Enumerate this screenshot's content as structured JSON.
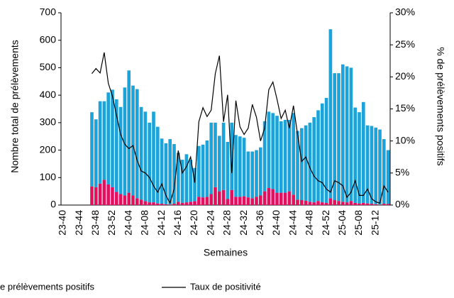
{
  "chart_data": {
    "type": "bar",
    "categories": [
      "23-40",
      null,
      null,
      null,
      "23-44",
      null,
      null,
      null,
      "23-48",
      null,
      null,
      null,
      "23-52",
      null,
      null,
      null,
      "24-04",
      null,
      null,
      null,
      "24-08",
      null,
      null,
      null,
      "24-12",
      null,
      null,
      null,
      "24-16",
      null,
      null,
      null,
      "24-20",
      null,
      null,
      null,
      "24-24",
      null,
      null,
      null,
      "24-28",
      null,
      null,
      null,
      "24-32",
      null,
      null,
      null,
      "24-36",
      null,
      null,
      null,
      "24-40",
      null,
      null,
      null,
      "24-44",
      null,
      null,
      null,
      "24-48",
      null,
      null,
      null,
      "24-52",
      null,
      null,
      null,
      "25-04",
      null,
      null,
      null,
      "25-08",
      null,
      null,
      null,
      "25-12",
      null,
      null,
      null
    ],
    "series": [
      {
        "color": "#e3105f",
        "name": "e prélèvements positifs",
        "values": [
          null,
          null,
          null,
          null,
          null,
          null,
          null,
          68,
          65,
          78,
          92,
          75,
          65,
          48,
          40,
          35,
          45,
          35,
          25,
          20,
          14,
          10,
          10,
          6,
          5,
          3,
          2,
          5,
          12,
          8,
          10,
          12,
          14,
          30,
          28,
          30,
          40,
          65,
          50,
          55,
          22,
          55,
          30,
          30,
          32,
          28,
          25,
          30,
          35,
          50,
          62,
          58,
          45,
          45,
          45,
          50,
          38,
          20,
          18,
          16,
          12,
          10,
          15,
          10,
          8,
          25,
          18,
          15,
          12,
          10,
          15,
          8,
          6,
          8,
          6,
          5,
          3,
          2,
          5,
          4
        ]
      },
      {
        "color": "#1ba3da",
        "values": [
          null,
          null,
          null,
          null,
          null,
          null,
          null,
          270,
          247,
          300,
          286,
          335,
          355,
          337,
          317,
          393,
          445,
          400,
          397,
          337,
          326,
          290,
          330,
          279,
          237,
          222,
          238,
          217,
          178,
          157,
          175,
          153,
          121,
          185,
          192,
          205,
          260,
          235,
          202,
          245,
          208,
          245,
          225,
          220,
          213,
          167,
          170,
          170,
          175,
          255,
          278,
          277,
          280,
          260,
          265,
          260,
          297,
          250,
          262,
          274,
          288,
          310,
          330,
          360,
          382,
          615,
          462,
          465,
          500,
          495,
          485,
          347,
          332,
          367,
          284,
          283,
          279,
          273,
          235,
          196
        ]
      },
      {
        "type": "line",
        "axis": "y2",
        "color": "#000000",
        "name": "Taux de positivité",
        "values": [
          null,
          null,
          null,
          null,
          null,
          null,
          null,
          20.5,
          21.3,
          20.6,
          23.8,
          19.0,
          17.0,
          14.0,
          11.0,
          9.5,
          8.8,
          9.3,
          7.0,
          5.3,
          5.0,
          4.3,
          3.0,
          2.0,
          3.3,
          1.5,
          0.3,
          2.5,
          8.5,
          5.0,
          6.0,
          7.5,
          3.5,
          13.0,
          15.2,
          13.8,
          14.8,
          20.5,
          23.3,
          13.0,
          17.2,
          5.0,
          16.3,
          12.2,
          11.0,
          12.0,
          15.7,
          13.7,
          10.0,
          12.0,
          18.0,
          19.2,
          16.5,
          13.5,
          14.8,
          12.0,
          15.5,
          11.0,
          6.8,
          7.5,
          5.8,
          4.5,
          3.8,
          3.5,
          2.5,
          2.0,
          3.8,
          3.5,
          3.0,
          1.2,
          2.0,
          3.8,
          1.5,
          1.5,
          2.5,
          1.0,
          0.5,
          0.3,
          3.0,
          2.0
        ]
      }
    ],
    "ylim": [
      0,
      700
    ],
    "yticks": [
      0,
      100,
      200,
      300,
      400,
      500,
      600,
      700
    ],
    "y2lim": [
      0,
      30
    ],
    "y2ticks": [
      {
        "value": 0,
        "label": "0%"
      },
      {
        "value": 5,
        "label": "5%"
      },
      {
        "value": 10,
        "label": "10%"
      },
      {
        "value": 15,
        "label": "15%"
      },
      {
        "value": 20,
        "label": "20%"
      },
      {
        "value": 25,
        "label": "25%"
      },
      {
        "value": 30,
        "label": "30%"
      }
    ],
    "ylabel": "Nombre total de prélèvements",
    "y2label": "% de prélèvements positifs",
    "xlabel": "Semaines",
    "grid": false
  }
}
